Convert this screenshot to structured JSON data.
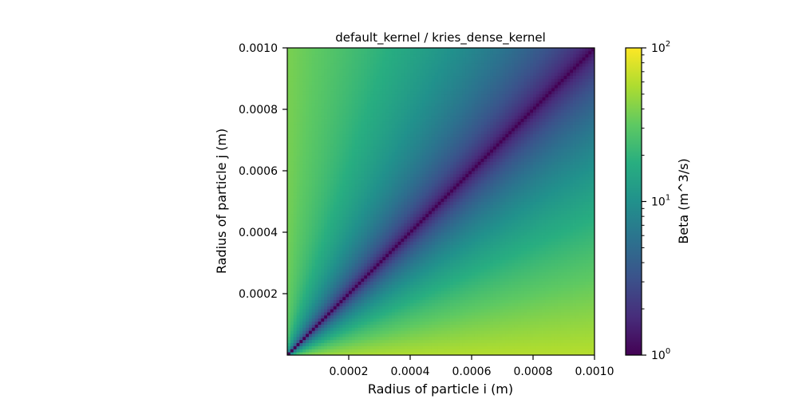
{
  "chart_data": {
    "type": "heatmap",
    "title": "default_kernel / kries_dense_kernel",
    "xlabel": "Radius of particle i (m)",
    "ylabel": "Radius of particle j (m)",
    "xlim": [
      0.0,
      0.001
    ],
    "ylim": [
      0.0,
      0.001
    ],
    "x_ticks": [
      0.0002,
      0.0004,
      0.0006,
      0.0008,
      0.001
    ],
    "x_tick_labels": [
      "0.0002",
      "0.0004",
      "0.0006",
      "0.0008",
      "0.0010"
    ],
    "y_ticks": [
      0.0002,
      0.0004,
      0.0006,
      0.0008,
      0.001
    ],
    "y_tick_labels": [
      "0.0002",
      "0.0004",
      "0.0006",
      "0.0008",
      "0.0010"
    ],
    "grid": false,
    "grid_size": 100,
    "colormap": "viridis",
    "colorbar": {
      "label": "Beta (m^3/s)",
      "scale": "log",
      "range": [
        1,
        100
      ],
      "major_ticks": [
        1,
        10,
        100
      ],
      "major_tick_base": "10",
      "major_tick_exponents": [
        "0",
        "1",
        "2"
      ],
      "minor_ticks": [
        2,
        3,
        4,
        5,
        6,
        7,
        8,
        9,
        20,
        30,
        40,
        50,
        60,
        70,
        80,
        90
      ]
    },
    "values_description": {
      "diagonal_value": 1.0,
      "near_corner_max_value": 40,
      "lower_right_bias": 1.12
    }
  }
}
